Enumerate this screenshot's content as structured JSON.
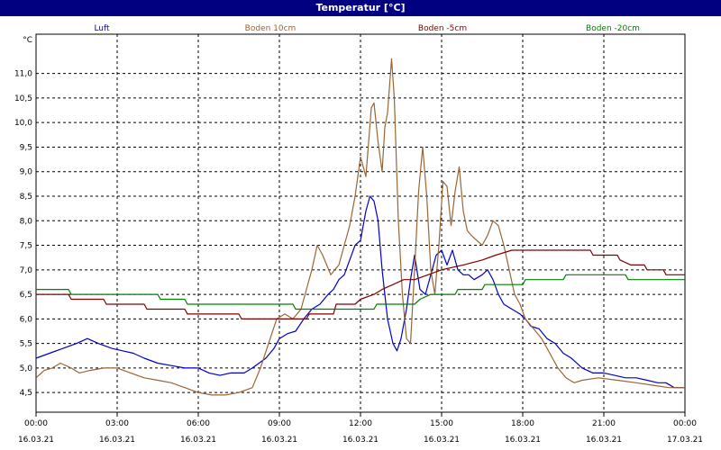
{
  "window": {
    "title": "Temperatur [°C]"
  },
  "colors": {
    "background": "#ffffff",
    "titlebar": "#000080",
    "grid": "#000000",
    "luft": "#0000cc",
    "boden10": "#996633",
    "boden5": "#800000",
    "boden20": "#008000"
  },
  "chart_data": {
    "type": "line",
    "title": "Temperatur [°C]",
    "y_unit": "°C",
    "ylim": [
      4.1,
      11.8
    ],
    "xlim_hours": [
      0,
      24
    ],
    "grid": true,
    "legend_position": "top",
    "y_ticks": [
      {
        "value": 4.5,
        "label": "4,5"
      },
      {
        "value": 5.0,
        "label": "5,0"
      },
      {
        "value": 5.5,
        "label": "5,5"
      },
      {
        "value": 6.0,
        "label": "6,0"
      },
      {
        "value": 6.5,
        "label": "6,5"
      },
      {
        "value": 7.0,
        "label": "7,0"
      },
      {
        "value": 7.5,
        "label": "7,5"
      },
      {
        "value": 8.0,
        "label": "8,0"
      },
      {
        "value": 8.5,
        "label": "8,5"
      },
      {
        "value": 9.0,
        "label": "9,0"
      },
      {
        "value": 9.5,
        "label": "9,5"
      },
      {
        "value": 10.0,
        "label": "10,0"
      },
      {
        "value": 10.5,
        "label": "10,5"
      },
      {
        "value": 11.0,
        "label": "11,0"
      }
    ],
    "x_ticks": [
      {
        "hour": 0,
        "time": "00:00",
        "date": "16.03.21"
      },
      {
        "hour": 3,
        "time": "03:00",
        "date": "16.03.21"
      },
      {
        "hour": 6,
        "time": "06:00",
        "date": "16.03.21"
      },
      {
        "hour": 9,
        "time": "09:00",
        "date": "16.03.21"
      },
      {
        "hour": 12,
        "time": "12:00",
        "date": "16.03.21"
      },
      {
        "hour": 15,
        "time": "15:00",
        "date": "16.03.21"
      },
      {
        "hour": 18,
        "time": "18:00",
        "date": "16.03.21"
      },
      {
        "hour": 21,
        "time": "21:00",
        "date": "16.03.21"
      },
      {
        "hour": 24,
        "time": "00:00",
        "date": "17.03.21"
      }
    ],
    "series": [
      {
        "name": "Luft",
        "color": "#0000cc",
        "points": [
          [
            0,
            5.2
          ],
          [
            0.5,
            5.3
          ],
          [
            1,
            5.4
          ],
          [
            1.5,
            5.5
          ],
          [
            1.9,
            5.6
          ],
          [
            2.3,
            5.5
          ],
          [
            2.8,
            5.4
          ],
          [
            3.2,
            5.35
          ],
          [
            3.6,
            5.3
          ],
          [
            4.0,
            5.2
          ],
          [
            4.5,
            5.1
          ],
          [
            5.0,
            5.05
          ],
          [
            5.5,
            5.0
          ],
          [
            6.0,
            5.0
          ],
          [
            6.4,
            4.9
          ],
          [
            6.8,
            4.85
          ],
          [
            7.2,
            4.9
          ],
          [
            7.7,
            4.9
          ],
          [
            8.0,
            5.0
          ],
          [
            8.5,
            5.2
          ],
          [
            8.8,
            5.4
          ],
          [
            9.0,
            5.6
          ],
          [
            9.3,
            5.7
          ],
          [
            9.6,
            5.75
          ],
          [
            9.9,
            6.0
          ],
          [
            10.2,
            6.2
          ],
          [
            10.5,
            6.3
          ],
          [
            10.8,
            6.5
          ],
          [
            11.0,
            6.6
          ],
          [
            11.2,
            6.8
          ],
          [
            11.4,
            6.9
          ],
          [
            11.6,
            7.2
          ],
          [
            11.8,
            7.5
          ],
          [
            12.0,
            7.6
          ],
          [
            12.2,
            8.2
          ],
          [
            12.35,
            8.5
          ],
          [
            12.5,
            8.4
          ],
          [
            12.65,
            8.0
          ],
          [
            12.8,
            7.0
          ],
          [
            13.0,
            6.0
          ],
          [
            13.2,
            5.5
          ],
          [
            13.35,
            5.35
          ],
          [
            13.5,
            5.6
          ],
          [
            13.7,
            6.2
          ],
          [
            13.85,
            6.8
          ],
          [
            14.0,
            7.3
          ],
          [
            14.2,
            6.6
          ],
          [
            14.4,
            6.5
          ],
          [
            14.6,
            6.9
          ],
          [
            14.8,
            7.3
          ],
          [
            15.0,
            7.4
          ],
          [
            15.2,
            7.1
          ],
          [
            15.4,
            7.4
          ],
          [
            15.6,
            7.0
          ],
          [
            15.8,
            6.9
          ],
          [
            16.0,
            6.9
          ],
          [
            16.2,
            6.8
          ],
          [
            16.5,
            6.9
          ],
          [
            16.7,
            7.0
          ],
          [
            16.9,
            6.8
          ],
          [
            17.1,
            6.5
          ],
          [
            17.3,
            6.3
          ],
          [
            17.6,
            6.2
          ],
          [
            17.9,
            6.1
          ],
          [
            18.1,
            6.0
          ],
          [
            18.3,
            5.85
          ],
          [
            18.6,
            5.8
          ],
          [
            18.9,
            5.6
          ],
          [
            19.2,
            5.5
          ],
          [
            19.5,
            5.3
          ],
          [
            19.8,
            5.2
          ],
          [
            20.2,
            5.0
          ],
          [
            20.6,
            4.9
          ],
          [
            21.0,
            4.9
          ],
          [
            21.4,
            4.85
          ],
          [
            21.8,
            4.8
          ],
          [
            22.2,
            4.8
          ],
          [
            22.6,
            4.75
          ],
          [
            23.0,
            4.7
          ],
          [
            23.3,
            4.7
          ],
          [
            23.6,
            4.6
          ],
          [
            24,
            4.6
          ]
        ]
      },
      {
        "name": "Boden 10cm",
        "color": "#996633",
        "points": [
          [
            0,
            4.8
          ],
          [
            0.3,
            4.95
          ],
          [
            0.6,
            5.0
          ],
          [
            0.9,
            5.1
          ],
          [
            1.3,
            5.0
          ],
          [
            1.6,
            4.9
          ],
          [
            2.0,
            4.95
          ],
          [
            2.5,
            5.0
          ],
          [
            3.0,
            5.0
          ],
          [
            3.5,
            4.9
          ],
          [
            4.0,
            4.8
          ],
          [
            4.5,
            4.75
          ],
          [
            5.0,
            4.7
          ],
          [
            5.5,
            4.6
          ],
          [
            6.0,
            4.5
          ],
          [
            6.5,
            4.45
          ],
          [
            7.0,
            4.45
          ],
          [
            7.5,
            4.5
          ],
          [
            8.0,
            4.6
          ],
          [
            8.3,
            5.0
          ],
          [
            8.6,
            5.5
          ],
          [
            8.9,
            6.0
          ],
          [
            9.2,
            6.1
          ],
          [
            9.5,
            6.0
          ],
          [
            9.8,
            6.2
          ],
          [
            10.0,
            6.6
          ],
          [
            10.2,
            7.0
          ],
          [
            10.4,
            7.5
          ],
          [
            10.6,
            7.3
          ],
          [
            10.9,
            6.9
          ],
          [
            11.2,
            7.1
          ],
          [
            11.4,
            7.5
          ],
          [
            11.6,
            7.9
          ],
          [
            11.8,
            8.5
          ],
          [
            12.0,
            9.3
          ],
          [
            12.2,
            8.9
          ],
          [
            12.4,
            10.3
          ],
          [
            12.5,
            10.4
          ],
          [
            12.65,
            9.6
          ],
          [
            12.8,
            9.0
          ],
          [
            12.9,
            9.9
          ],
          [
            13.0,
            10.2
          ],
          [
            13.15,
            11.3
          ],
          [
            13.25,
            10.5
          ],
          [
            13.4,
            8.0
          ],
          [
            13.55,
            6.5
          ],
          [
            13.7,
            5.6
          ],
          [
            13.85,
            5.5
          ],
          [
            14.0,
            7.0
          ],
          [
            14.15,
            8.6
          ],
          [
            14.3,
            9.5
          ],
          [
            14.45,
            8.5
          ],
          [
            14.6,
            7.0
          ],
          [
            14.75,
            6.5
          ],
          [
            14.9,
            7.5
          ],
          [
            15.05,
            8.8
          ],
          [
            15.2,
            8.7
          ],
          [
            15.35,
            7.9
          ],
          [
            15.5,
            8.6
          ],
          [
            15.65,
            9.1
          ],
          [
            15.8,
            8.2
          ],
          [
            15.95,
            7.8
          ],
          [
            16.1,
            7.7
          ],
          [
            16.3,
            7.6
          ],
          [
            16.5,
            7.5
          ],
          [
            16.7,
            7.7
          ],
          [
            16.9,
            8.0
          ],
          [
            17.1,
            7.9
          ],
          [
            17.3,
            7.5
          ],
          [
            17.5,
            7.0
          ],
          [
            17.7,
            6.5
          ],
          [
            17.9,
            6.3
          ],
          [
            18.1,
            6.0
          ],
          [
            18.4,
            5.8
          ],
          [
            18.7,
            5.6
          ],
          [
            19.0,
            5.3
          ],
          [
            19.3,
            5.0
          ],
          [
            19.6,
            4.8
          ],
          [
            19.9,
            4.7
          ],
          [
            20.2,
            4.75
          ],
          [
            20.8,
            4.8
          ],
          [
            21.5,
            4.75
          ],
          [
            22.2,
            4.7
          ],
          [
            22.8,
            4.65
          ],
          [
            23.4,
            4.6
          ],
          [
            24,
            4.6
          ]
        ]
      },
      {
        "name": "Boden -5cm",
        "color": "#800000",
        "points": [
          [
            0,
            6.5
          ],
          [
            1.2,
            6.5
          ],
          [
            1.3,
            6.4
          ],
          [
            2.5,
            6.4
          ],
          [
            2.6,
            6.3
          ],
          [
            4.0,
            6.3
          ],
          [
            4.1,
            6.2
          ],
          [
            5.5,
            6.2
          ],
          [
            5.6,
            6.1
          ],
          [
            7.5,
            6.1
          ],
          [
            7.6,
            6.0
          ],
          [
            10.0,
            6.0
          ],
          [
            10.1,
            6.1
          ],
          [
            11.0,
            6.1
          ],
          [
            11.1,
            6.3
          ],
          [
            11.8,
            6.3
          ],
          [
            12.0,
            6.4
          ],
          [
            12.5,
            6.5
          ],
          [
            12.8,
            6.6
          ],
          [
            13.2,
            6.7
          ],
          [
            13.6,
            6.8
          ],
          [
            14.0,
            6.8
          ],
          [
            14.5,
            6.9
          ],
          [
            15.0,
            7.0
          ],
          [
            15.8,
            7.1
          ],
          [
            16.5,
            7.2
          ],
          [
            17.0,
            7.3
          ],
          [
            17.6,
            7.4
          ],
          [
            20.5,
            7.4
          ],
          [
            20.6,
            7.3
          ],
          [
            21.5,
            7.3
          ],
          [
            21.6,
            7.2
          ],
          [
            22.0,
            7.1
          ],
          [
            22.5,
            7.1
          ],
          [
            22.6,
            7.0
          ],
          [
            23.2,
            7.0
          ],
          [
            23.3,
            6.9
          ],
          [
            24,
            6.9
          ]
        ]
      },
      {
        "name": "Boden -20cm",
        "color": "#008000",
        "points": [
          [
            0,
            6.6
          ],
          [
            1.2,
            6.6
          ],
          [
            1.3,
            6.5
          ],
          [
            4.5,
            6.5
          ],
          [
            4.6,
            6.4
          ],
          [
            5.5,
            6.4
          ],
          [
            5.6,
            6.3
          ],
          [
            9.5,
            6.3
          ],
          [
            9.6,
            6.2
          ],
          [
            12.5,
            6.2
          ],
          [
            12.6,
            6.3
          ],
          [
            14.0,
            6.3
          ],
          [
            14.2,
            6.4
          ],
          [
            14.6,
            6.5
          ],
          [
            15.5,
            6.5
          ],
          [
            15.6,
            6.6
          ],
          [
            16.5,
            6.6
          ],
          [
            16.6,
            6.7
          ],
          [
            18.0,
            6.7
          ],
          [
            18.1,
            6.8
          ],
          [
            19.5,
            6.8
          ],
          [
            19.6,
            6.9
          ],
          [
            21.8,
            6.9
          ],
          [
            21.9,
            6.8
          ],
          [
            24,
            6.8
          ]
        ]
      }
    ]
  }
}
